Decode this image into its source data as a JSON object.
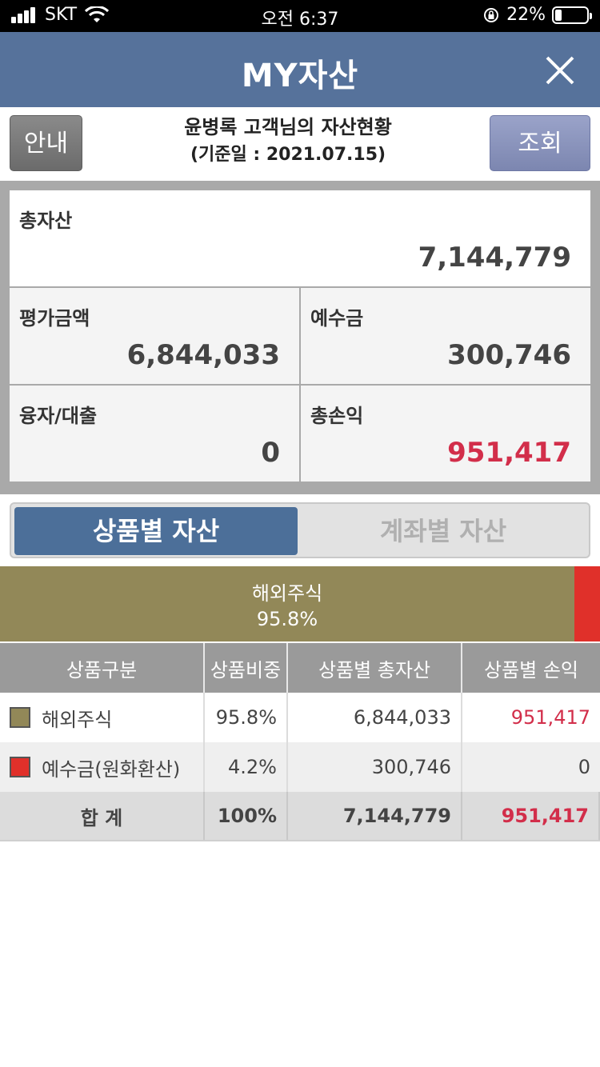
{
  "status_bar": {
    "carrier": "SKT",
    "time": "오전 6:37",
    "battery": "22%",
    "battery_level": 0.22
  },
  "header": {
    "title": "MY자산"
  },
  "info": {
    "guide_button": "안내",
    "customer_line": "윤병록 고객님의 자산현황",
    "base_date": "(기준일 : 2021.07.15)",
    "search_button": "조회"
  },
  "summary": {
    "total_label": "총자산",
    "total_value": "7,144,779",
    "eval_label": "평가금액",
    "eval_value": "6,844,033",
    "deposit_label": "예수금",
    "deposit_value": "300,746",
    "loan_label": "융자/대출",
    "loan_value": "0",
    "pl_label": "총손익",
    "pl_value": "951,417"
  },
  "tabs": {
    "product": "상품별 자산",
    "account": "계좌별 자산"
  },
  "allocation": {
    "main_name": "해외주식",
    "main_pct": "95.8%",
    "main_share": 0.958,
    "cash_share": 0.042
  },
  "table": {
    "headers": [
      "상품구분",
      "상품비중",
      "상품별 총자산",
      "상품별 손익"
    ],
    "rows": [
      {
        "name": "해외주식",
        "weight": "95.8%",
        "total": "6,844,033",
        "pl": "951,417"
      },
      {
        "name": "예수금(원화환산)",
        "weight": "4.2%",
        "total": "300,746",
        "pl": "0"
      }
    ],
    "total_row": {
      "name": "합 계",
      "weight": "100%",
      "total": "7,144,779",
      "pl": "951,417"
    }
  },
  "colors": {
    "header_bg": "#56729b",
    "overseas_stock": "#928858",
    "cash": "#e0302a",
    "profit_red": "#d22e4a"
  }
}
